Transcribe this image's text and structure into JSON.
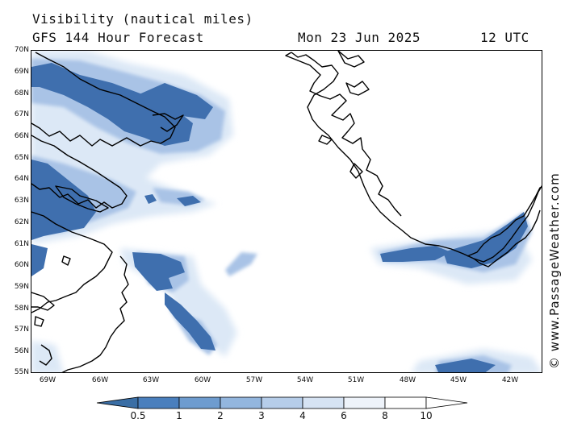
{
  "header": {
    "title": "Visibility (nautical miles)",
    "model": "GFS 144 Hour Forecast",
    "date": "Mon 23 Jun 2025",
    "time": "12 UTC"
  },
  "credit": "© www.PassageWeather.com",
  "axes": {
    "lat_labels": [
      "70N",
      "69N",
      "68N",
      "67N",
      "66N",
      "65N",
      "64N",
      "63N",
      "62N",
      "61N",
      "60N",
      "59N",
      "58N",
      "57N",
      "56N",
      "55N"
    ],
    "lon_labels": [
      "69W",
      "66W",
      "63W",
      "60W",
      "57W",
      "54W",
      "51W",
      "48W",
      "45W",
      "42W"
    ]
  },
  "colorbar": {
    "labels": [
      "0.5",
      "1",
      "2",
      "3",
      "4",
      "6",
      "8",
      "10"
    ],
    "colors": [
      "#3a6ea5",
      "#4a7fbd",
      "#6e9ccf",
      "#93b6de",
      "#b6cde9",
      "#d6e3f3",
      "#eef3fa",
      "#ffffff"
    ]
  },
  "map_colors": {
    "very_low": "#3f6fae",
    "low": "#6f9bd0",
    "moderate": "#a9c3e6",
    "high": "#dce8f6",
    "coast": "#000000"
  }
}
